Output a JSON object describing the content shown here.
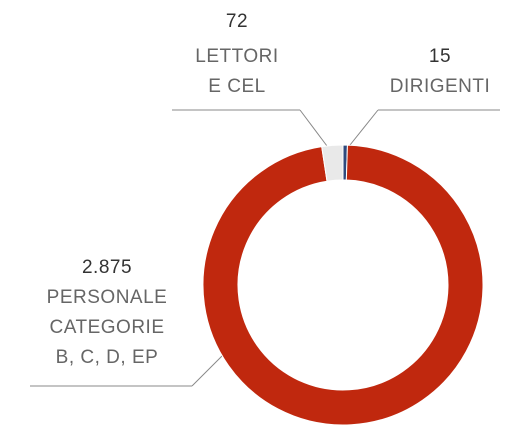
{
  "chart_data": {
    "type": "donut",
    "categories": [
      [
        "DIRIGENTI"
      ],
      [
        "PERSONALE",
        "CATEGORIE",
        "B, C, D, EP"
      ],
      [
        "LETTORI",
        "E CEL"
      ]
    ],
    "values": [
      15,
      2875,
      72
    ],
    "value_labels": [
      "15",
      "2.875",
      "72"
    ],
    "colors": [
      "#2e4a7d",
      "#c0280e",
      "#e9e9e9"
    ]
  }
}
